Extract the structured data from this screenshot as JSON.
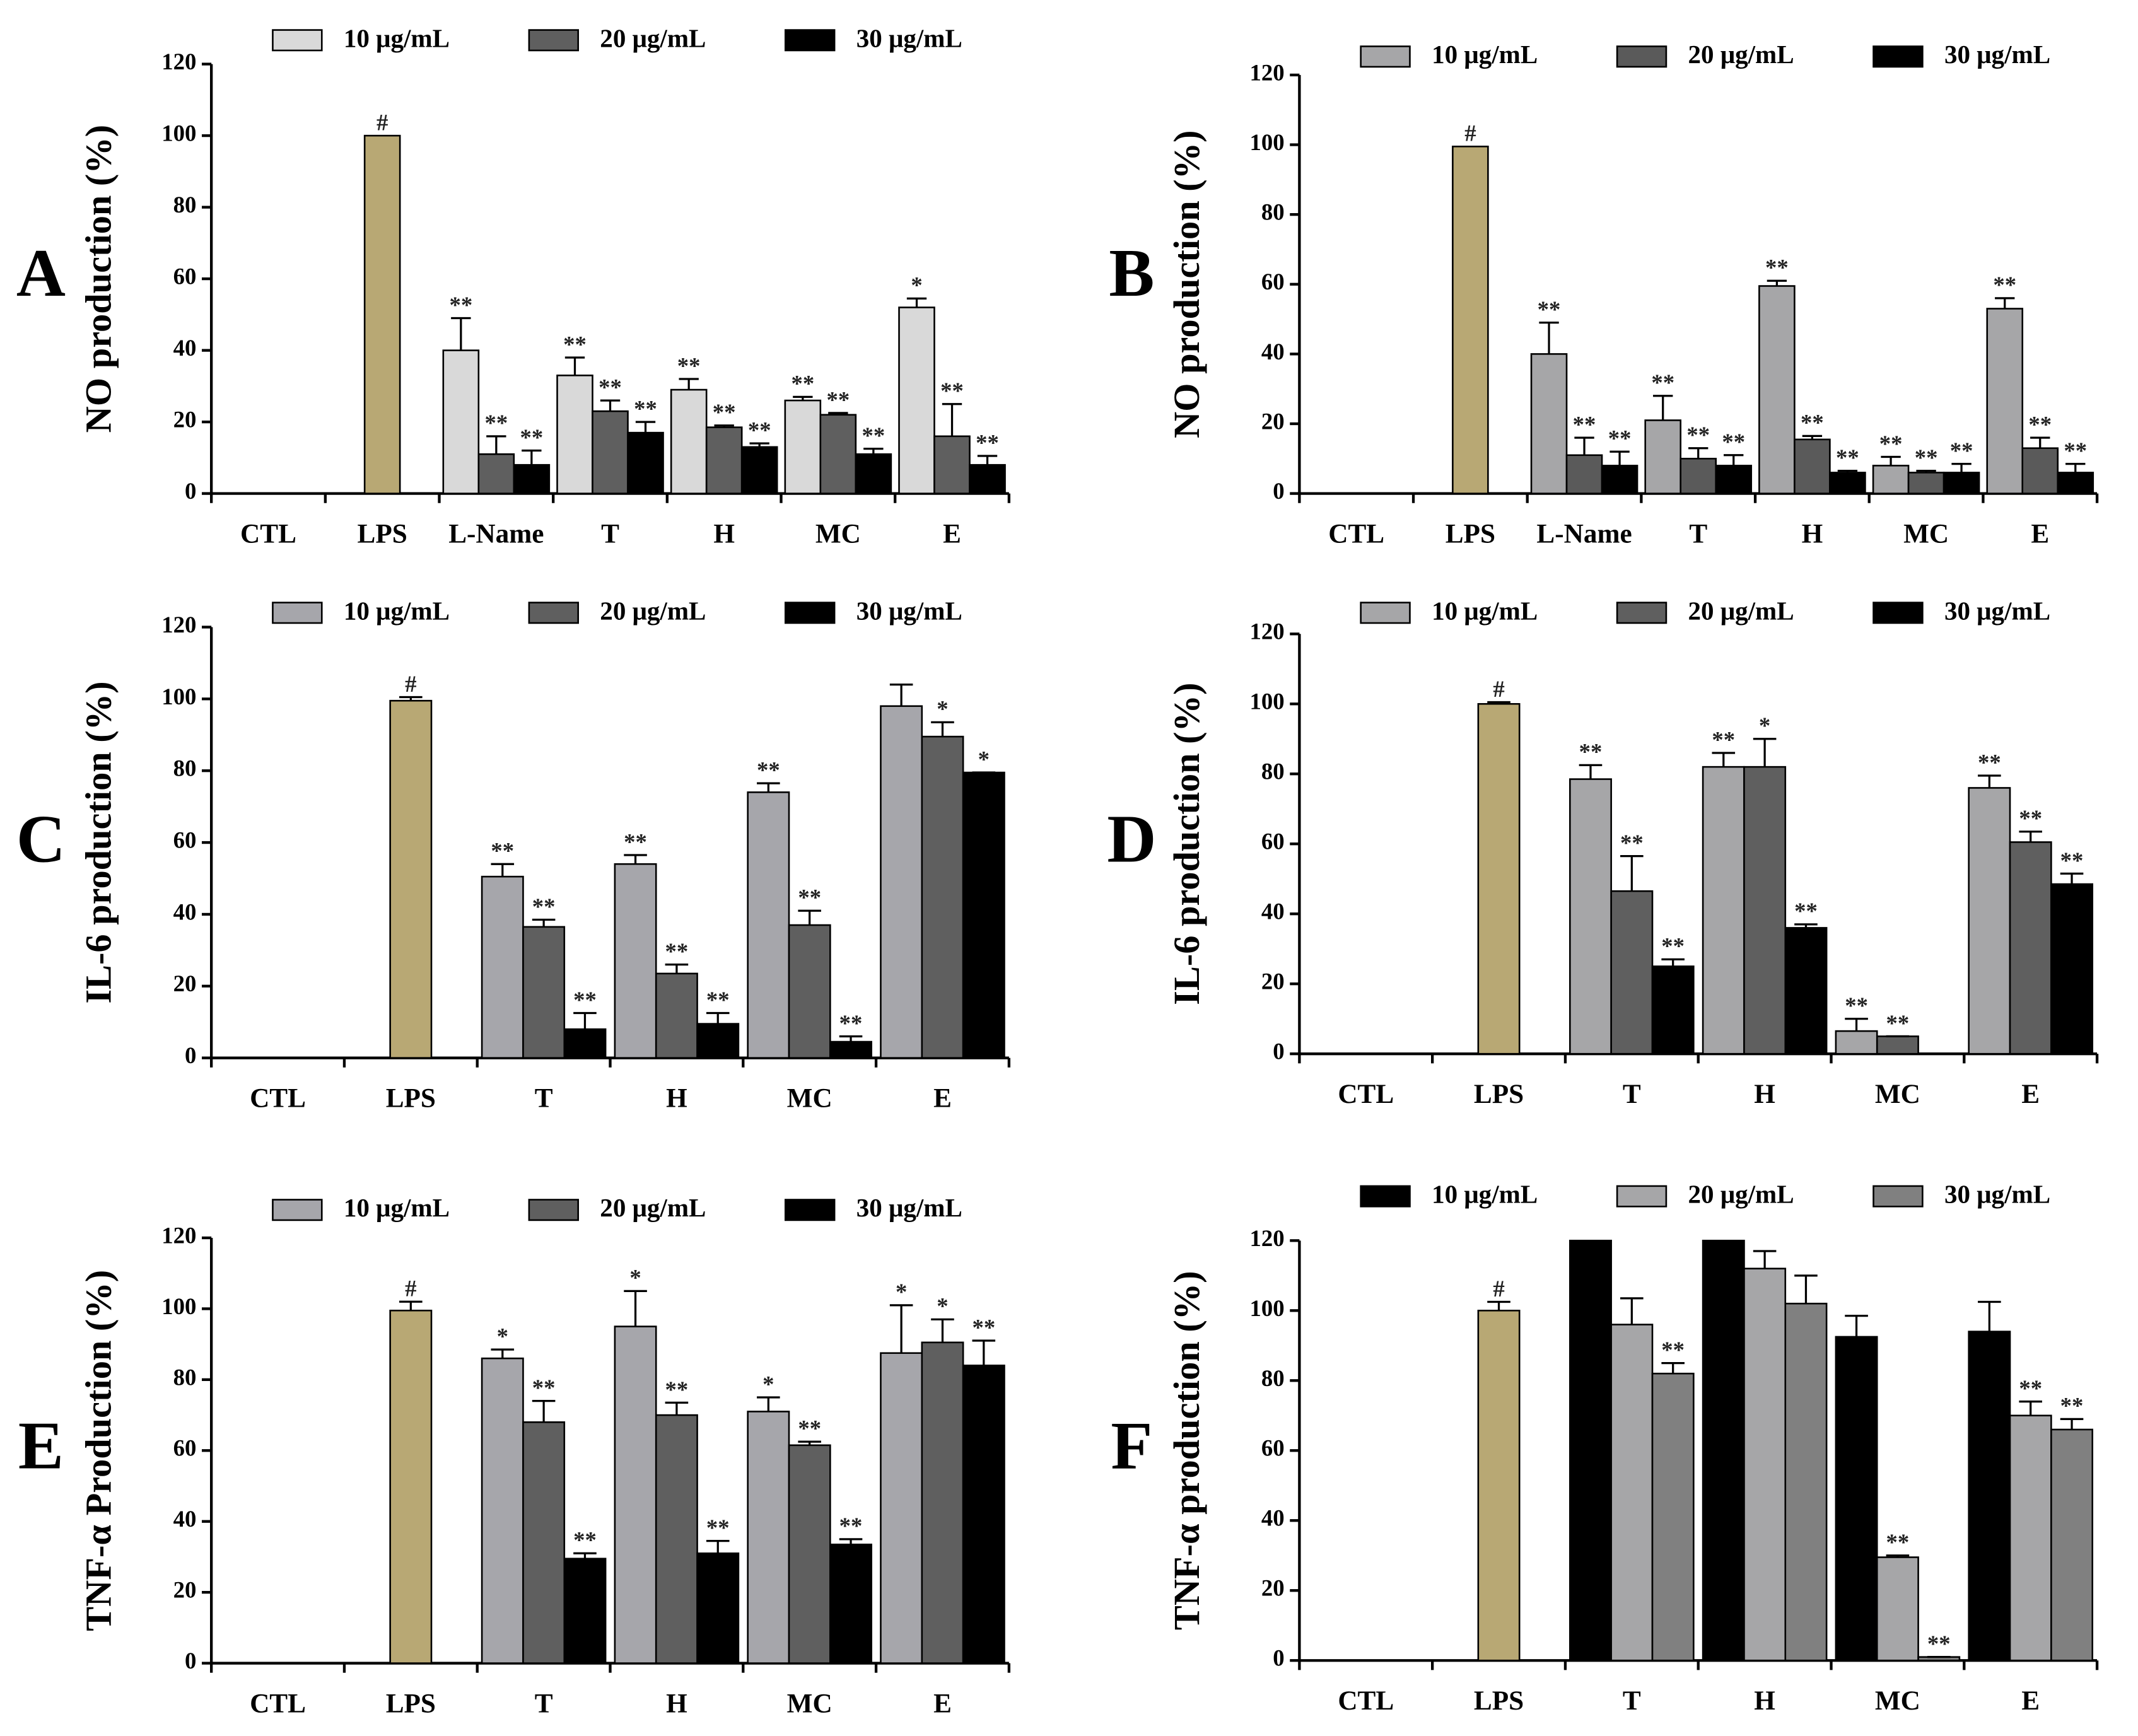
{
  "chart_data": [
    {
      "type": "bar",
      "panel": "A",
      "ylabel": "NO production (%)",
      "categories": [
        "CTL",
        "LPS",
        "L-Name",
        "T",
        "H",
        "MC",
        "E"
      ],
      "ylim": [
        0,
        120
      ],
      "yticks": [
        0,
        20,
        40,
        60,
        80,
        100,
        120
      ],
      "series": [
        {
          "name": "10 μg/mL",
          "color": "#d9d9d9",
          "values": [
            null,
            null,
            40,
            33,
            29,
            26,
            52
          ],
          "errors": [
            null,
            null,
            9,
            5,
            3,
            1,
            2.5
          ],
          "annotations": [
            null,
            null,
            "**",
            "**",
            "**",
            "**",
            "*"
          ]
        },
        {
          "name": "20 μg/mL",
          "color": "#5f5f5f",
          "values": [
            null,
            null,
            11,
            23,
            18.5,
            22,
            16
          ],
          "errors": [
            null,
            null,
            5,
            3,
            0.5,
            0.5,
            9
          ],
          "annotations": [
            null,
            null,
            "**",
            "**",
            "**",
            "**",
            "**"
          ]
        },
        {
          "name": "30 μg/mL",
          "color": "#000000",
          "values": [
            null,
            null,
            8,
            17,
            13,
            11,
            8
          ],
          "errors": [
            null,
            null,
            4,
            3,
            1,
            1.5,
            2.5
          ],
          "annotations": [
            null,
            null,
            "**",
            "**",
            "**",
            "**",
            "**"
          ]
        },
        {
          "color": "#b8a874",
          "values": [
            null,
            100,
            null,
            null,
            null,
            null,
            null
          ],
          "errors": [
            null,
            null,
            null,
            null,
            null,
            null,
            null
          ],
          "annotations": [
            null,
            "#",
            null,
            null,
            null,
            null,
            null
          ]
        }
      ]
    },
    {
      "type": "bar",
      "panel": "B",
      "ylabel": "NO production (%)",
      "categories": [
        "CTL",
        "LPS",
        "L-Name",
        "T",
        "H",
        "MC",
        "E"
      ],
      "ylim": [
        0,
        120
      ],
      "yticks": [
        0,
        20,
        40,
        60,
        80,
        100,
        120
      ],
      "series": [
        {
          "name": "10 μg/mL",
          "color": "#a6a6a8",
          "values": [
            null,
            null,
            40,
            21,
            59.5,
            8,
            53
          ],
          "errors": [
            null,
            null,
            9,
            7,
            1.5,
            2.5,
            3
          ],
          "annotations": [
            null,
            null,
            "**",
            "**",
            "**",
            "**",
            "**"
          ]
        },
        {
          "name": "20 μg/mL",
          "color": "#5a5a5a",
          "values": [
            null,
            null,
            11,
            10,
            15.5,
            6,
            13
          ],
          "errors": [
            null,
            null,
            5,
            3,
            1,
            0.5,
            3
          ],
          "annotations": [
            null,
            null,
            "**",
            "**",
            "**",
            "**",
            "**"
          ]
        },
        {
          "name": "30 μg/mL",
          "color": "#000000",
          "values": [
            null,
            null,
            8,
            8,
            6,
            6,
            6
          ],
          "errors": [
            null,
            null,
            4,
            3,
            0.5,
            2.5,
            2.5
          ],
          "annotations": [
            null,
            null,
            "**",
            "**",
            "**",
            "**",
            "**"
          ]
        },
        {
          "color": "#b8a874",
          "values": [
            null,
            99.5,
            null,
            null,
            null,
            null,
            null
          ],
          "errors": [
            null,
            null,
            null,
            null,
            null,
            null,
            null
          ],
          "annotations": [
            null,
            "#",
            null,
            null,
            null,
            null,
            null
          ]
        }
      ]
    },
    {
      "type": "bar",
      "panel": "C",
      "ylabel": "IL-6 production (%)",
      "categories": [
        "CTL",
        "LPS",
        "T",
        "H",
        "MC",
        "E"
      ],
      "ylim": [
        0,
        120
      ],
      "yticks": [
        0,
        20,
        40,
        60,
        80,
        100,
        120
      ],
      "series": [
        {
          "name": "10 μg/mL",
          "color": "#a6a6ab",
          "values": [
            null,
            null,
            50.5,
            54,
            74,
            98
          ],
          "errors": [
            null,
            null,
            3.5,
            2.5,
            2.5,
            6
          ],
          "annotations": [
            null,
            null,
            "**",
            "**",
            "**",
            null
          ]
        },
        {
          "name": "20 μg/mL",
          "color": "#5f5f5f",
          "values": [
            null,
            null,
            36.5,
            23.5,
            37,
            89.5
          ],
          "errors": [
            null,
            null,
            2,
            2.5,
            4,
            4
          ],
          "annotations": [
            null,
            null,
            "**",
            "**",
            "**",
            "*"
          ]
        },
        {
          "name": "30 μg/mL",
          "color": "#000000",
          "values": [
            null,
            null,
            8,
            9.5,
            4.5,
            79.5
          ],
          "errors": [
            null,
            null,
            4.5,
            3,
            1.5,
            0
          ],
          "annotations": [
            null,
            null,
            "**",
            "**",
            "**",
            "*"
          ]
        },
        {
          "color": "#b8a874",
          "values": [
            null,
            99.5,
            null,
            null,
            null,
            null
          ],
          "errors": [
            null,
            1,
            null,
            null,
            null,
            null
          ],
          "annotations": [
            null,
            "#",
            null,
            null,
            null,
            null
          ]
        }
      ]
    },
    {
      "type": "bar",
      "panel": "D",
      "ylabel": "IL-6 production (%)",
      "categories": [
        "CTL",
        "LPS",
        "T",
        "H",
        "MC",
        "E"
      ],
      "ylim": [
        0,
        120
      ],
      "yticks": [
        0,
        20,
        40,
        60,
        80,
        100,
        120
      ],
      "series": [
        {
          "name": "10 μg/mL",
          "color": "#a6a6a8",
          "values": [
            null,
            null,
            78.5,
            82,
            6.5,
            76
          ],
          "errors": [
            null,
            null,
            4,
            4,
            3.5,
            3.5
          ],
          "annotations": [
            null,
            null,
            "**",
            "**",
            "**",
            "**"
          ]
        },
        {
          "name": "20 μg/mL",
          "color": "#5f5f5f",
          "values": [
            null,
            null,
            46.5,
            82,
            5,
            60.5
          ],
          "errors": [
            null,
            null,
            10,
            8,
            0,
            3
          ],
          "annotations": [
            null,
            null,
            "**",
            "*",
            "**",
            "**"
          ]
        },
        {
          "name": "30 μg/mL",
          "color": "#000000",
          "values": [
            null,
            null,
            25,
            36,
            null,
            48.5
          ],
          "errors": [
            null,
            null,
            2,
            1,
            null,
            3
          ],
          "annotations": [
            null,
            null,
            "**",
            "**",
            null,
            "**"
          ]
        },
        {
          "color": "#b8a874",
          "values": [
            null,
            100,
            null,
            null,
            null,
            null
          ],
          "errors": [
            null,
            0.5,
            null,
            null,
            null,
            null
          ],
          "annotations": [
            null,
            "#",
            null,
            null,
            null,
            null
          ]
        }
      ]
    },
    {
      "type": "bar",
      "panel": "E",
      "ylabel": "TNF-α Production (%)",
      "categories": [
        "CTL",
        "LPS",
        "T",
        "H",
        "MC",
        "E"
      ],
      "ylim": [
        0,
        120
      ],
      "yticks": [
        0,
        20,
        40,
        60,
        80,
        100,
        120
      ],
      "series": [
        {
          "name": "10 μg/mL",
          "color": "#a6a6ab",
          "values": [
            null,
            null,
            86,
            95,
            71,
            87.5
          ],
          "errors": [
            null,
            null,
            2.5,
            10,
            4,
            13.5
          ],
          "annotations": [
            null,
            null,
            "*",
            "*",
            "*",
            "*"
          ]
        },
        {
          "name": "20 μg/mL",
          "color": "#5f5f5f",
          "values": [
            null,
            null,
            68,
            70,
            61.5,
            90.5
          ],
          "errors": [
            null,
            null,
            6,
            3.5,
            1,
            6.5
          ],
          "annotations": [
            null,
            null,
            "**",
            "**",
            "**",
            "*"
          ]
        },
        {
          "name": "30 μg/mL",
          "color": "#000000",
          "values": [
            null,
            null,
            29.5,
            31,
            33.5,
            84
          ],
          "errors": [
            null,
            null,
            1.5,
            3.5,
            1.5,
            7
          ],
          "annotations": [
            null,
            null,
            "**",
            "**",
            "**",
            "**"
          ]
        },
        {
          "color": "#b8a874",
          "values": [
            null,
            99.5,
            null,
            null,
            null,
            null
          ],
          "errors": [
            null,
            2.5,
            null,
            null,
            null,
            null
          ],
          "annotations": [
            null,
            "#",
            null,
            null,
            null,
            null
          ]
        }
      ]
    },
    {
      "type": "bar",
      "panel": "F",
      "ylabel": "TNF-α production (%)",
      "categories": [
        "CTL",
        "LPS",
        "T",
        "H",
        "MC",
        "E"
      ],
      "ylim": [
        0,
        120
      ],
      "yticks": [
        0,
        20,
        40,
        60,
        80,
        100,
        120
      ],
      "series": [
        {
          "name": "10 μg/mL",
          "color": "#000000",
          "values": [
            null,
            null,
            120,
            120,
            92.5,
            94
          ],
          "errors": [
            null,
            null,
            null,
            null,
            6,
            8.5
          ],
          "annotations": [
            null,
            null,
            null,
            null,
            null,
            null
          ]
        },
        {
          "name": "20 μg/mL",
          "color": "#a6a6a8",
          "values": [
            null,
            null,
            96,
            112,
            29.5,
            70
          ],
          "errors": [
            null,
            null,
            7.5,
            5,
            0.5,
            4
          ],
          "annotations": [
            null,
            null,
            null,
            null,
            "**",
            "**"
          ]
        },
        {
          "name": "30 μg/mL",
          "color": "#808080",
          "values": [
            null,
            null,
            82,
            102,
            1,
            66
          ],
          "errors": [
            null,
            null,
            3,
            8,
            0,
            3
          ],
          "annotations": [
            null,
            null,
            "**",
            null,
            "**",
            "**"
          ]
        },
        {
          "color": "#b8a874",
          "values": [
            null,
            100,
            null,
            null,
            null,
            null
          ],
          "errors": [
            null,
            2.5,
            null,
            null,
            null,
            null
          ],
          "annotations": [
            null,
            "#",
            null,
            null,
            null,
            null
          ]
        }
      ]
    }
  ]
}
